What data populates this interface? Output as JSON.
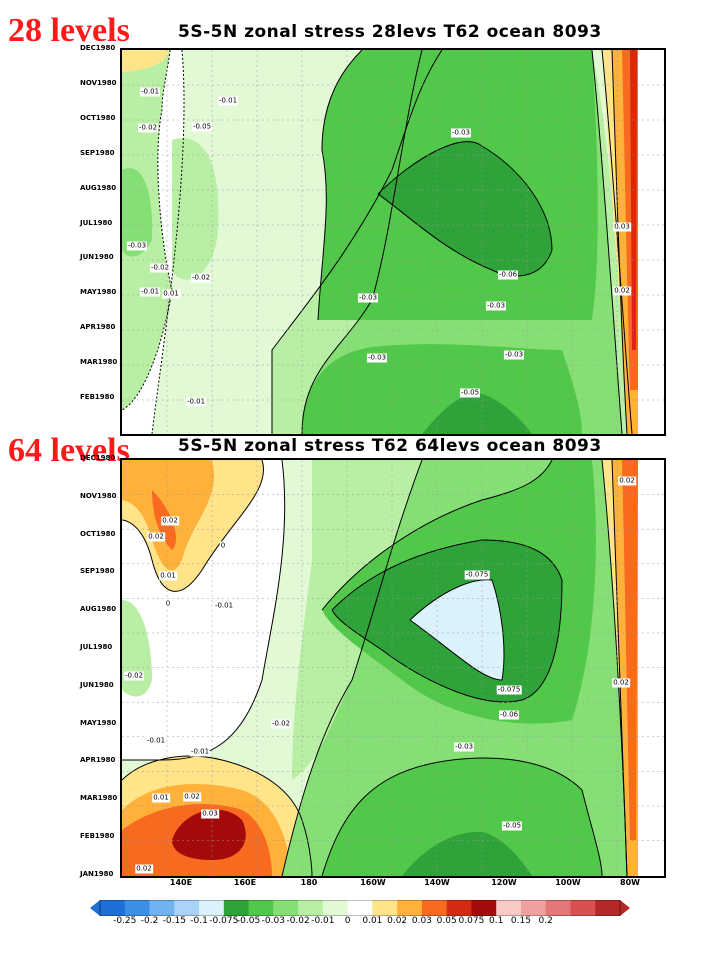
{
  "chart_data": [
    {
      "type": "heatmap",
      "label": "28 levels",
      "title": "5S-5N zonal stress 28levs T62 ocean 8093",
      "y_ticks": [
        "DEC1980",
        "NOV1980",
        "OCT1980",
        "SEP1980",
        "AUG1980",
        "JUL1980",
        "JUN1980",
        "MAY1980",
        "APR1980",
        "MAR1980",
        "FEB1980"
      ],
      "x_ticks": [],
      "contour_labels": [
        "-0.01",
        "-0.01",
        "-0.02",
        "-0.05",
        "-0.03",
        "-0.03",
        "-0.02",
        "-0.02",
        "-0.01",
        "0.01",
        "-0.06",
        "-0.03",
        "-0.03",
        "-0.03",
        "-0.03",
        "-0.05",
        "-0.01",
        "0.03",
        "0.02"
      ]
    },
    {
      "type": "heatmap",
      "label": "64 levels",
      "title": "5S-5N zonal stress T62 64levs ocean 8093",
      "y_ticks": [
        "DEC1980",
        "NOV1980",
        "OCT1980",
        "SEP1980",
        "AUG1980",
        "JUL1980",
        "JUN1980",
        "MAY1980",
        "APR1980",
        "MAR1980",
        "FEB1980",
        "JAN1980"
      ],
      "x_ticks": [
        "140E",
        "160E",
        "180",
        "160W",
        "140W",
        "120W",
        "100W",
        "80W"
      ],
      "contour_labels": [
        "0.02",
        "0.02",
        "0.01",
        "0",
        "-0.01",
        "0",
        "-0.02",
        "-0.075",
        "-0.075",
        "-0.06",
        "-0.02",
        "-0.01",
        "-0.01",
        "-0.03",
        "0.01",
        "0.02",
        "0.03",
        "0.02",
        "-0.05",
        "0.02",
        "0.02"
      ]
    }
  ],
  "colorbar": {
    "ticks": [
      "-0.25",
      "-0.2",
      "-0.15",
      "-0.1",
      "-0.075",
      "-0.05",
      "-0.03",
      "-0.02",
      "-0.01",
      "0",
      "0.01",
      "0.02",
      "0.03",
      "0.05",
      "0.075",
      "0.1",
      "0.15",
      "0.2"
    ],
    "colors": [
      "#1f6fd6",
      "#3d8fe6",
      "#70b3f0",
      "#a9d4f7",
      "#dbf2fb",
      "#2fa33a",
      "#52c84a",
      "#86df75",
      "#b8efa5",
      "#e2f9d6",
      "#ffffff",
      "#ffe48a",
      "#ffb13a",
      "#f86a1f",
      "#d42a14",
      "#a50a0a",
      "#f9c9c4",
      "#f0a0a0",
      "#e47878",
      "#d85050",
      "#b52828"
    ]
  }
}
